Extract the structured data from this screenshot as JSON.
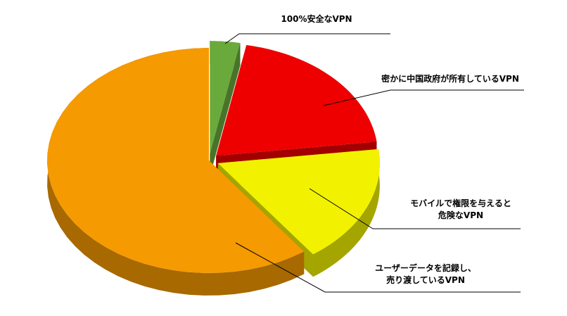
{
  "chart_data": {
    "type": "pie3d",
    "categories": [
      "100%安全なVPN",
      "密かに中国政府が所有しているVPN",
      "モバイルで権限を与えると\n危険なVPN",
      "ユーザーデータを記録し、\n売り渡しているVPN"
    ],
    "values": [
      3,
      20,
      17,
      60
    ],
    "colors": [
      "#6aaa3c",
      "#ee0000",
      "#f2f200",
      "#f59a00"
    ]
  }
}
